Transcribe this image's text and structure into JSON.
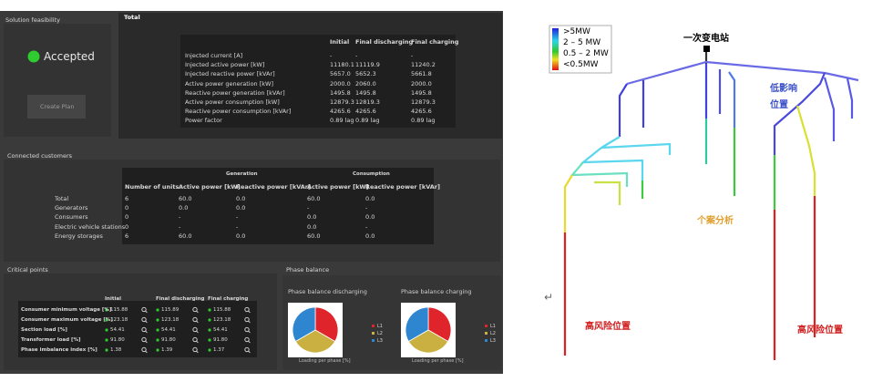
{
  "feasibility": {
    "title": "Solution feasibility",
    "status": "Accepted",
    "button": "Create Plan"
  },
  "total": {
    "title": "Total",
    "columns": [
      "Initial",
      "Final discharging",
      "Final charging"
    ],
    "rows": [
      [
        "Injected current [A]",
        "-",
        "-",
        "-"
      ],
      [
        "Injected active power [kW]",
        "11180.1",
        "11119.9",
        "11240.2"
      ],
      [
        "Injected reactive power [kVAr]",
        "5657.0",
        "5652.3",
        "5661.8"
      ],
      [
        "Active power generation [kW]",
        "2000.0",
        "2060.0",
        "2000.0"
      ],
      [
        "Reactive power generation [kVAr]",
        "1495.8",
        "1495.8",
        "1495.8"
      ],
      [
        "Active power consumption [kW]",
        "12879.3",
        "12819.3",
        "12879.3"
      ],
      [
        "Reactive power consumption [kVAr]",
        "4265.6",
        "4265.6",
        "4265.6"
      ],
      [
        "Power factor",
        "0.89 lag",
        "0.89 lag",
        "0.89 lag"
      ]
    ]
  },
  "customers": {
    "title": "Connected customers",
    "group_headers": [
      "Generation",
      "Consumption"
    ],
    "columns": [
      "Number of units",
      "Active power [kW]",
      "Reactive power [kVAr]",
      "Active power [kW]",
      "Reactive power [kVAr]"
    ],
    "rows": [
      [
        "Total",
        "6",
        "60.0",
        "0.0",
        "60.0",
        "0.0"
      ],
      [
        "Generators",
        "0",
        "0.0",
        "0.0",
        "-",
        "-"
      ],
      [
        "Consumers",
        "0",
        "-",
        "-",
        "0.0",
        "0.0"
      ],
      [
        "Electric vehicle stations",
        "0",
        "-",
        "-",
        "0.0",
        "-"
      ],
      [
        "Energy storages",
        "6",
        "60.0",
        "0.0",
        "60.0",
        "0.0"
      ]
    ]
  },
  "critical": {
    "title": "Critical points",
    "columns": [
      "Initial",
      "Final discharging",
      "Final charging"
    ],
    "rows": [
      [
        "Consumer minimum voltage [%]",
        "115.88",
        "115.89",
        "115.88"
      ],
      [
        "Consumer maximum voltage [%]",
        "123.18",
        "123.18",
        "123.18"
      ],
      [
        "Section load [%]",
        "54.41",
        "54.41",
        "54.41"
      ],
      [
        "Transformer load [%]",
        "91.80",
        "91.80",
        "91.80"
      ],
      [
        "Phase imbalance index [%]",
        "1.38",
        "1.39",
        "1.37"
      ]
    ]
  },
  "phase": {
    "title": "Phase balance",
    "charts": [
      {
        "title": "Phase balance discharging",
        "caption": "Loading per phase [%]",
        "labels": [
          "L1",
          "L2",
          "L3"
        ],
        "colors": [
          "#e0242b",
          "#c9b040",
          "#2e86d0"
        ],
        "values": [
          33.3,
          33.3,
          33.3
        ]
      },
      {
        "title": "Phase balance charging",
        "caption": "Loading per phase [%]",
        "labels": [
          "L1",
          "L2",
          "L3"
        ],
        "colors": [
          "#e0242b",
          "#c9b040",
          "#2e86d0"
        ],
        "values": [
          33.3,
          33.3,
          33.3
        ]
      }
    ]
  },
  "network_map": {
    "legend": [
      ">5MW",
      "2 – 5 MW",
      "0.5 – 2 MW",
      "<0.5MW"
    ],
    "substation": "一次变电站",
    "low_impact": [
      "低影响",
      "位置"
    ],
    "case_study": "个案分析",
    "high_risk": [
      "高风险位置",
      "高风险位置"
    ],
    "paragraph_mark": "↵"
  }
}
